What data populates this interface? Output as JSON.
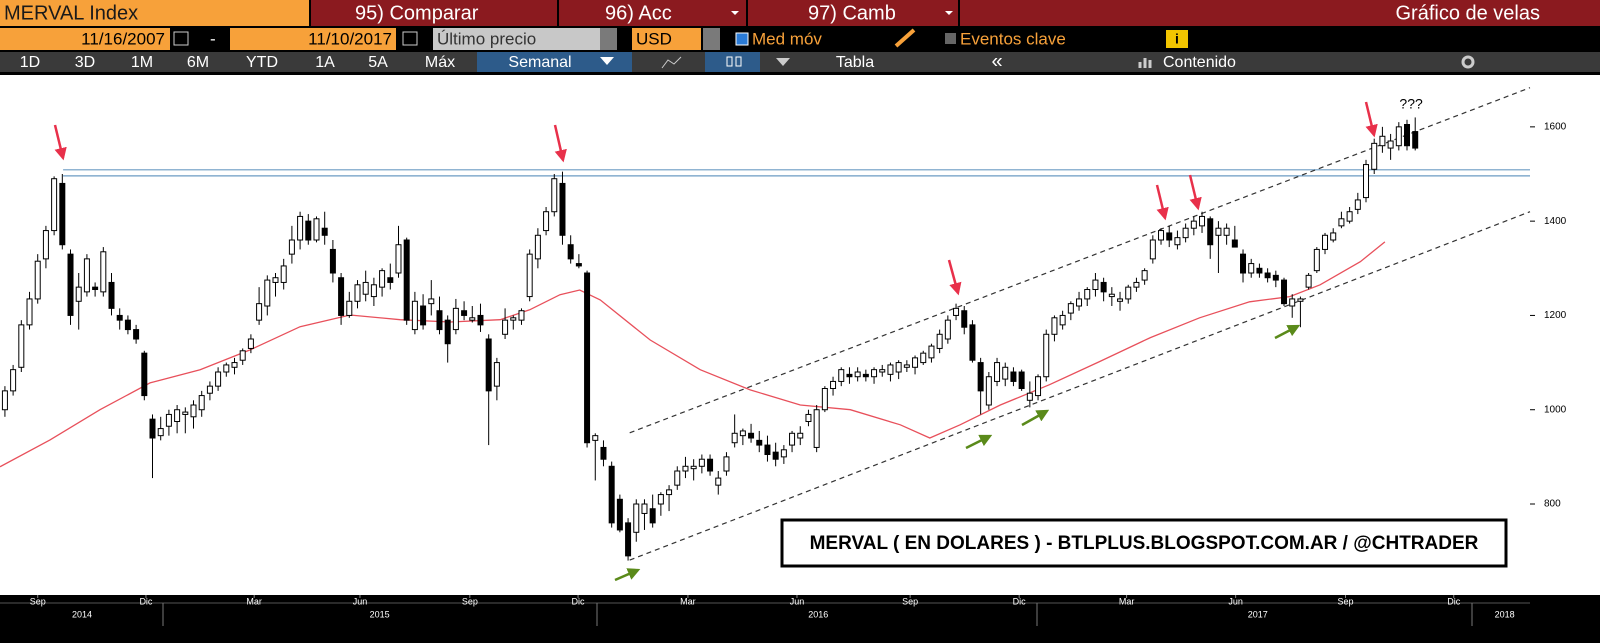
{
  "toolbar": {
    "security": "MERVAL Index",
    "compare": "95) Comparar",
    "acc": "96) Acc",
    "camb": "97) Camb",
    "chart_kind": "Gráfico de velas",
    "start_date": "11/16/2007",
    "date_sep": "-",
    "end_date": "11/10/2017",
    "price_field": "Último precio",
    "currency": "USD",
    "moving_avg": "Med móv",
    "key_events": "Eventos clave",
    "ranges": [
      "1D",
      "3D",
      "1M",
      "6M",
      "YTD",
      "1A",
      "5A",
      "Máx"
    ],
    "period": "Semanal",
    "table": "Tabla",
    "content": "Contenido"
  },
  "chart_data": {
    "type": "candlestick",
    "watermark": "MERVAL ( EN DOLARES ) - BTLPLUS.BLOGSPOT.COM.AR / @CHTRADER",
    "annotations": [
      {
        "text": "???",
        "x": 171.5,
        "y": 1647
      }
    ],
    "up_color": "#ffffff",
    "down_color": "#000000",
    "wick_color": "#000000",
    "candles": [
      [
        1000,
        1050,
        985,
        1040
      ],
      [
        1040,
        1095,
        1030,
        1085
      ],
      [
        1090,
        1190,
        1080,
        1180
      ],
      [
        1180,
        1250,
        1170,
        1235
      ],
      [
        1235,
        1330,
        1225,
        1315
      ],
      [
        1320,
        1390,
        1300,
        1380
      ],
      [
        1380,
        1495,
        1370,
        1490
      ],
      [
        1480,
        1500,
        1340,
        1350
      ],
      [
        1330,
        1340,
        1180,
        1200
      ],
      [
        1230,
        1290,
        1170,
        1260
      ],
      [
        1250,
        1330,
        1240,
        1320
      ],
      [
        1260,
        1270,
        1240,
        1255
      ],
      [
        1250,
        1345,
        1240,
        1335
      ],
      [
        1270,
        1290,
        1200,
        1215
      ],
      [
        1200,
        1215,
        1170,
        1190
      ],
      [
        1190,
        1200,
        1160,
        1170
      ],
      [
        1170,
        1180,
        1140,
        1150
      ],
      [
        1120,
        1125,
        1020,
        1030
      ],
      [
        980,
        990,
        855,
        940
      ],
      [
        945,
        985,
        935,
        960
      ],
      [
        965,
        1000,
        945,
        990
      ],
      [
        975,
        1010,
        950,
        1000
      ],
      [
        990,
        1005,
        950,
        995
      ],
      [
        985,
        1020,
        960,
        1010
      ],
      [
        1000,
        1040,
        985,
        1030
      ],
      [
        1035,
        1060,
        1020,
        1050
      ],
      [
        1050,
        1090,
        1040,
        1080
      ],
      [
        1080,
        1100,
        1070,
        1095
      ],
      [
        1090,
        1110,
        1075,
        1100
      ],
      [
        1105,
        1130,
        1095,
        1125
      ],
      [
        1130,
        1160,
        1120,
        1150
      ],
      [
        1190,
        1260,
        1180,
        1225
      ],
      [
        1220,
        1285,
        1200,
        1275
      ],
      [
        1270,
        1290,
        1240,
        1280
      ],
      [
        1270,
        1320,
        1255,
        1305
      ],
      [
        1330,
        1390,
        1310,
        1360
      ],
      [
        1360,
        1420,
        1340,
        1410
      ],
      [
        1400,
        1415,
        1350,
        1360
      ],
      [
        1360,
        1410,
        1355,
        1405
      ],
      [
        1385,
        1420,
        1350,
        1370
      ],
      [
        1340,
        1360,
        1270,
        1290
      ],
      [
        1280,
        1290,
        1180,
        1200
      ],
      [
        1200,
        1250,
        1195,
        1230
      ],
      [
        1230,
        1275,
        1215,
        1265
      ],
      [
        1245,
        1295,
        1230,
        1270
      ],
      [
        1240,
        1280,
        1220,
        1265
      ],
      [
        1260,
        1300,
        1240,
        1295
      ],
      [
        1280,
        1310,
        1255,
        1270
      ],
      [
        1290,
        1390,
        1280,
        1350
      ],
      [
        1360,
        1365,
        1180,
        1190
      ],
      [
        1170,
        1250,
        1160,
        1230
      ],
      [
        1220,
        1245,
        1170,
        1180
      ],
      [
        1225,
        1275,
        1200,
        1235
      ],
      [
        1210,
        1240,
        1160,
        1170
      ],
      [
        1190,
        1200,
        1100,
        1140
      ],
      [
        1170,
        1235,
        1160,
        1215
      ],
      [
        1210,
        1230,
        1190,
        1200
      ],
      [
        1190,
        1220,
        1185,
        1195
      ],
      [
        1200,
        1225,
        1165,
        1180
      ],
      [
        1150,
        1160,
        925,
        1040
      ],
      [
        1050,
        1110,
        1020,
        1100
      ],
      [
        1160,
        1215,
        1150,
        1190
      ],
      [
        1190,
        1200,
        1170,
        1195
      ],
      [
        1190,
        1215,
        1180,
        1210
      ],
      [
        1240,
        1340,
        1230,
        1330
      ],
      [
        1320,
        1385,
        1300,
        1370
      ],
      [
        1380,
        1430,
        1370,
        1420
      ],
      [
        1420,
        1500,
        1410,
        1490
      ],
      [
        1480,
        1505,
        1350,
        1370
      ],
      [
        1350,
        1370,
        1310,
        1320
      ],
      [
        1310,
        1330,
        1300,
        1305
      ],
      [
        1290,
        1295,
        920,
        930
      ],
      [
        935,
        950,
        850,
        945
      ],
      [
        920,
        935,
        880,
        895
      ],
      [
        880,
        890,
        750,
        760
      ],
      [
        810,
        820,
        740,
        745
      ],
      [
        760,
        770,
        680,
        690
      ],
      [
        740,
        810,
        720,
        800
      ],
      [
        780,
        810,
        745,
        800
      ],
      [
        790,
        820,
        750,
        760
      ],
      [
        800,
        825,
        775,
        820
      ],
      [
        820,
        840,
        785,
        830
      ],
      [
        840,
        880,
        830,
        870
      ],
      [
        870,
        900,
        855,
        880
      ],
      [
        875,
        895,
        850,
        880
      ],
      [
        880,
        905,
        865,
        895
      ],
      [
        895,
        905,
        860,
        870
      ],
      [
        840,
        870,
        820,
        855
      ],
      [
        870,
        910,
        860,
        900
      ],
      [
        930,
        990,
        920,
        950
      ],
      [
        945,
        960,
        925,
        955
      ],
      [
        950,
        970,
        930,
        940
      ],
      [
        935,
        955,
        910,
        925
      ],
      [
        925,
        945,
        890,
        905
      ],
      [
        910,
        930,
        880,
        895
      ],
      [
        900,
        925,
        885,
        915
      ],
      [
        925,
        955,
        910,
        950
      ],
      [
        940,
        965,
        925,
        950
      ],
      [
        975,
        1000,
        965,
        990
      ],
      [
        920,
        1010,
        910,
        1000
      ],
      [
        1000,
        1050,
        995,
        1045
      ],
      [
        1045,
        1070,
        1030,
        1060
      ],
      [
        1060,
        1090,
        1050,
        1085
      ],
      [
        1075,
        1090,
        1055,
        1070
      ],
      [
        1070,
        1090,
        1060,
        1080
      ],
      [
        1075,
        1085,
        1060,
        1070
      ],
      [
        1070,
        1090,
        1055,
        1085
      ],
      [
        1080,
        1095,
        1070,
        1085
      ],
      [
        1075,
        1100,
        1060,
        1095
      ],
      [
        1080,
        1105,
        1065,
        1100
      ],
      [
        1090,
        1105,
        1080,
        1095
      ],
      [
        1090,
        1115,
        1075,
        1110
      ],
      [
        1100,
        1125,
        1095,
        1120
      ],
      [
        1110,
        1140,
        1100,
        1135
      ],
      [
        1130,
        1170,
        1120,
        1160
      ],
      [
        1150,
        1200,
        1140,
        1190
      ],
      [
        1200,
        1225,
        1190,
        1215
      ],
      [
        1210,
        1220,
        1160,
        1175
      ],
      [
        1180,
        1190,
        1100,
        1105
      ],
      [
        1100,
        1110,
        990,
        1040
      ],
      [
        1010,
        1080,
        1000,
        1070
      ],
      [
        1060,
        1110,
        1050,
        1100
      ],
      [
        1065,
        1100,
        1050,
        1090
      ],
      [
        1080,
        1090,
        1050,
        1060
      ],
      [
        1080,
        1085,
        1040,
        1045
      ],
      [
        1020,
        1060,
        1005,
        1035
      ],
      [
        1030,
        1075,
        1020,
        1070
      ],
      [
        1070,
        1170,
        1060,
        1160
      ],
      [
        1160,
        1200,
        1145,
        1195
      ],
      [
        1180,
        1210,
        1170,
        1200
      ],
      [
        1205,
        1230,
        1190,
        1225
      ],
      [
        1220,
        1250,
        1210,
        1235
      ],
      [
        1235,
        1260,
        1220,
        1255
      ],
      [
        1255,
        1290,
        1240,
        1275
      ],
      [
        1270,
        1280,
        1230,
        1250
      ],
      [
        1240,
        1260,
        1220,
        1245
      ],
      [
        1230,
        1250,
        1210,
        1235
      ],
      [
        1235,
        1265,
        1225,
        1260
      ],
      [
        1260,
        1280,
        1250,
        1270
      ],
      [
        1275,
        1300,
        1265,
        1295
      ],
      [
        1320,
        1370,
        1310,
        1360
      ],
      [
        1360,
        1385,
        1350,
        1380
      ],
      [
        1375,
        1390,
        1345,
        1360
      ],
      [
        1350,
        1380,
        1340,
        1365
      ],
      [
        1365,
        1395,
        1355,
        1385
      ],
      [
        1385,
        1410,
        1370,
        1400
      ],
      [
        1390,
        1420,
        1375,
        1410
      ],
      [
        1405,
        1410,
        1320,
        1350
      ],
      [
        1370,
        1400,
        1290,
        1385
      ],
      [
        1370,
        1395,
        1350,
        1385
      ],
      [
        1360,
        1390,
        1345,
        1345
      ],
      [
        1330,
        1340,
        1270,
        1290
      ],
      [
        1290,
        1320,
        1280,
        1310
      ],
      [
        1300,
        1310,
        1280,
        1290
      ],
      [
        1290,
        1300,
        1270,
        1280
      ],
      [
        1285,
        1295,
        1260,
        1275
      ],
      [
        1275,
        1280,
        1220,
        1225
      ],
      [
        1220,
        1245,
        1195,
        1235
      ],
      [
        1230,
        1240,
        1175,
        1235
      ],
      [
        1260,
        1290,
        1255,
        1285
      ],
      [
        1295,
        1345,
        1290,
        1340
      ],
      [
        1340,
        1375,
        1330,
        1370
      ],
      [
        1360,
        1385,
        1355,
        1375
      ],
      [
        1390,
        1420,
        1385,
        1405
      ],
      [
        1400,
        1430,
        1395,
        1420
      ],
      [
        1425,
        1460,
        1415,
        1445
      ],
      [
        1450,
        1530,
        1440,
        1520
      ],
      [
        1510,
        1575,
        1500,
        1565
      ],
      [
        1560,
        1600,
        1545,
        1580
      ],
      [
        1555,
        1585,
        1530,
        1570
      ],
      [
        1560,
        1610,
        1550,
        1600
      ],
      [
        1605,
        1615,
        1550,
        1560
      ],
      [
        1590,
        1620,
        1550,
        1555
      ]
    ],
    "moving_average": {
      "color": "#e8505b",
      "x": [
        -0.6,
        5.5,
        11.6,
        17.7,
        23.8,
        29.9,
        36,
        42.1,
        48.2,
        54.3,
        60.4,
        64.0,
        67.7,
        70.1,
        72.6,
        78.7,
        84.8,
        90.9,
        97,
        103.1,
        109.2,
        112.8,
        116.5,
        121.4,
        127.4,
        133.5,
        139.7,
        145.7,
        151.8,
        156.7,
        160.4,
        165.3,
        168.3
      ],
      "values": [
        879,
        936,
        1000,
        1057,
        1085,
        1127,
        1176,
        1201,
        1191,
        1186,
        1191,
        1212,
        1244,
        1254,
        1233,
        1148,
        1085,
        1042,
        1010,
        1000,
        968,
        940,
        968,
        1010,
        1053,
        1102,
        1153,
        1195,
        1229,
        1240,
        1265,
        1314,
        1356
      ]
    },
    "reference_lines": [
      {
        "color": "#6b9bc3",
        "style": "solid",
        "x": [
          7.1,
          186
        ],
        "values": [
          1509,
          1509
        ]
      },
      {
        "color": "#6b9bc3",
        "style": "solid",
        "x": [
          7.1,
          186
        ],
        "values": [
          1496,
          1496
        ]
      },
      {
        "color": "#333333",
        "style": "dashed",
        "x": [
          76.2,
          186
        ],
        "values": [
          951,
          1683
        ]
      },
      {
        "color": "#333333",
        "style": "dashed",
        "x": [
          76.2,
          186
        ],
        "values": [
          681,
          1420
        ]
      }
    ],
    "xlim": [
      -0.6,
      186
    ],
    "ylim": [
      607,
      1710
    ],
    "yticks": [
      800,
      1000,
      1200,
      1400,
      1600
    ],
    "xticks": [
      {
        "value": 4.0,
        "label": "Sep"
      },
      {
        "value": 17.2,
        "label": "Dic"
      },
      {
        "value": 30.4,
        "label": "Mar"
      },
      {
        "value": 43.3,
        "label": "Jun"
      },
      {
        "value": 56.7,
        "label": "Sep"
      },
      {
        "value": 69.9,
        "label": "Dic"
      },
      {
        "value": 83.3,
        "label": "Mar"
      },
      {
        "value": 96.6,
        "label": "Jun"
      },
      {
        "value": 110.4,
        "label": "Sep"
      },
      {
        "value": 123.7,
        "label": "Dic"
      },
      {
        "value": 136.8,
        "label": "Mar"
      },
      {
        "value": 150.1,
        "label": "Jun"
      },
      {
        "value": 163.5,
        "label": "Sep"
      },
      {
        "value": 176.7,
        "label": "Dic"
      }
    ],
    "year_ticks": [
      {
        "value": 9.4,
        "label": "2014"
      },
      {
        "value": 45.7,
        "label": "2015"
      },
      {
        "value": 99.2,
        "label": "2016"
      },
      {
        "value": 152.8,
        "label": "2017"
      },
      {
        "value": 182.9,
        "label": "2018"
      }
    ]
  }
}
